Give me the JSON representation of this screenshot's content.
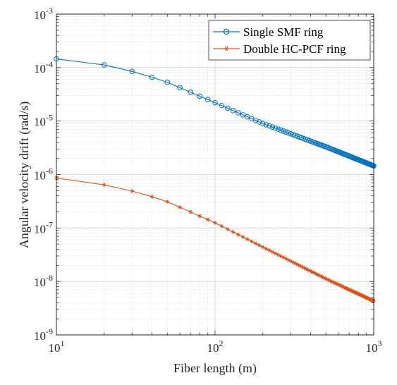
{
  "chart_data": {
    "type": "line",
    "title": "",
    "xlabel": "Fiber length (m)",
    "ylabel": "Angular velocity drift (rad/s)",
    "xscale": "log",
    "yscale": "log",
    "xlim": [
      10,
      1000
    ],
    "ylim": [
      1e-09,
      0.001
    ],
    "grid": true,
    "minor_grid": true,
    "legend": "top-right",
    "x_ticks": [
      {
        "value": 10,
        "base": "10",
        "exp": "1"
      },
      {
        "value": 100,
        "base": "10",
        "exp": "2"
      },
      {
        "value": 1000,
        "base": "10",
        "exp": "3"
      }
    ],
    "y_ticks": [
      {
        "value": 1e-09,
        "base": "10",
        "exp": "-9"
      },
      {
        "value": 1e-08,
        "base": "10",
        "exp": "-8"
      },
      {
        "value": 1e-07,
        "base": "10",
        "exp": "-7"
      },
      {
        "value": 1e-06,
        "base": "10",
        "exp": "-6"
      },
      {
        "value": 1e-05,
        "base": "10",
        "exp": "-5"
      },
      {
        "value": 0.0001,
        "base": "10",
        "exp": "-4"
      },
      {
        "value": 0.001,
        "base": "10",
        "exp": "-3"
      }
    ],
    "x_values": "10 to 1000 in steps of 10",
    "series": [
      {
        "name": "Single SMF ring",
        "color": "#0072BD",
        "marker": "circle",
        "sample_points": [
          [
            10,
            0.000145
          ],
          [
            20,
            0.000112
          ],
          [
            30,
            8.5e-05
          ],
          [
            40,
            6.6e-05
          ],
          [
            50,
            5.3e-05
          ],
          [
            100,
            2.2e-05
          ],
          [
            200,
            9e-06
          ],
          [
            500,
            3.3e-06
          ],
          [
            1000,
            1.45e-06
          ]
        ]
      },
      {
        "name": "Double HC-PCF ring",
        "color": "#D95319",
        "marker": "star",
        "sample_points": [
          [
            10,
            8.6e-07
          ],
          [
            20,
            6.4e-07
          ],
          [
            30,
            4.9e-07
          ],
          [
            40,
            3.85e-07
          ],
          [
            50,
            3.1e-07
          ],
          [
            100,
            1.25e-07
          ],
          [
            200,
            4.4e-08
          ],
          [
            500,
            1.12e-08
          ],
          [
            1000,
            4.3e-09
          ]
        ]
      }
    ]
  }
}
